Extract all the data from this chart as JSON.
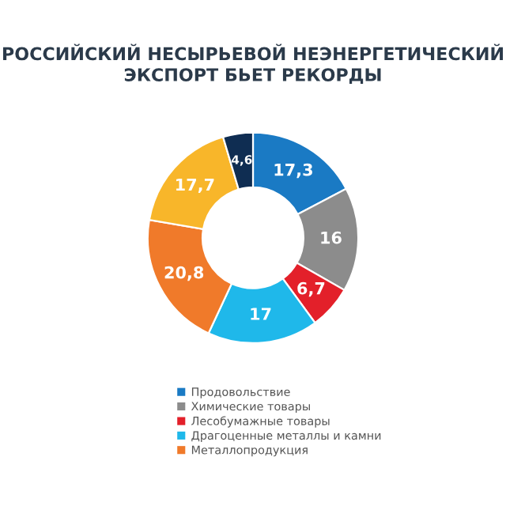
{
  "chart_data": {
    "type": "donut",
    "title": "РОССИЙСКИЙ НЕСЫРЬЕВОЙ НЕЭНЕРГЕТИЧЕСКИЙ\nЭКСПОРТ БЬЕТ РЕКОРДЫ",
    "categories": [
      "Продовольствие",
      "Химические товары",
      "Лесобумажные товары",
      "Драгоценные металлы и камни",
      "Металлопродукция",
      null,
      null
    ],
    "values": [
      17.3,
      16,
      6.7,
      17,
      20.8,
      17.7,
      4.6
    ],
    "value_labels": [
      "17,3",
      "16",
      "6,7",
      "17",
      "20,8",
      "17,7",
      "4,6"
    ],
    "colors": [
      "#1a7ac4",
      "#8c8c8c",
      "#e3202a",
      "#1fb8ea",
      "#f07a2a",
      "#f8b62a",
      "#0f2d52"
    ],
    "legend": "bottom"
  }
}
